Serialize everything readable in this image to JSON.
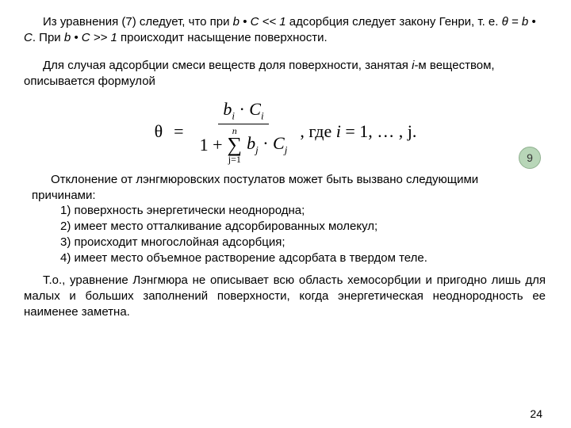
{
  "para1": {
    "pre": "Из уравнения (7) следует, что при ",
    "em1": "b • С << 1",
    "mid1": " адсорбция следует закону Генри, т. е. ",
    "em2": "θ = b • С",
    "mid2": ". При ",
    "em3": "b • С >> 1",
    "post": " происходит насыщение поверхности."
  },
  "para2": {
    "pre": "Для случая адсорбции смеси веществ доля поверхности, занятая ",
    "em": "i",
    "post": "-м веществом, описывается формулой"
  },
  "formula": {
    "theta": "θ",
    "eq": "=",
    "num_b": "b",
    "num_i": "i",
    "dot": " · ",
    "num_C": "C",
    "den_one": "1 +",
    "sum_top": "n",
    "sum_bot": "j=1",
    "den_b": "b",
    "den_j": "j",
    "den_C": "C",
    "tail": ", где ",
    "tail_i": "i",
    "tail_rest": "  =  1, … , j.",
    "label": "9"
  },
  "block3": {
    "lead": "Отклонение от лэнгмюровских постулатов может быть вызвано следующими причинами:",
    "i1": "1) поверхность энергетически неоднородна;",
    "i2": "2) имеет место отталкивание адсорбированных молекул;",
    "i3": "3) происходит многослойная адсорбция;",
    "i4": "4) имеет место объемное растворение адсорбата в твердом теле."
  },
  "para4": "Т.о., уравнение Лэнгмюра не описывает всю область хемосорбции и пригодно лишь для малых и больших заполнений поверхности, когда энергетическая неоднородность ее наименее заметна.",
  "pageNumber": "24",
  "colors": {
    "bg": "#ffffff",
    "text": "#000000",
    "badge_fill": "#b8d6b8",
    "badge_border": "#8fb08f"
  },
  "fonts": {
    "body": "Arial, 15px",
    "formula": "Times New Roman, 22px"
  }
}
